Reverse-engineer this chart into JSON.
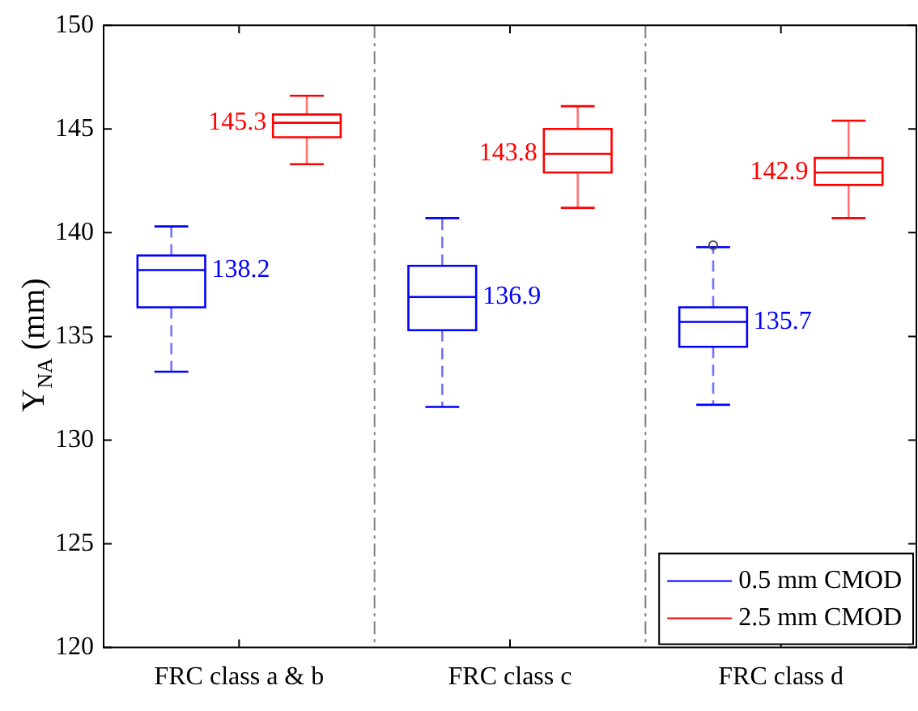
{
  "chart_data": {
    "type": "box",
    "ylabel": "Y$_{NA}$ (mm)",
    "categories": [
      "FRC class a & b",
      "FRC class c",
      "FRC class d"
    ],
    "series": [
      {
        "name": "0.5 mm CMOD",
        "color": "#0000ff",
        "line_style": "dashed",
        "value_labels": [
          "138.2",
          "136.9",
          "135.7"
        ],
        "boxes": [
          {
            "low": 133.3,
            "q1": 136.4,
            "median": 138.2,
            "q3": 138.9,
            "high": 140.3
          },
          {
            "low": 131.6,
            "q1": 135.3,
            "median": 136.9,
            "q3": 138.4,
            "high": 140.7
          },
          {
            "low": 131.7,
            "q1": 134.5,
            "median": 135.7,
            "q3": 136.4,
            "high": 139.3,
            "outliers": [
              139.4
            ]
          }
        ]
      },
      {
        "name": "2.5 mm CMOD",
        "color": "#ff0000",
        "line_style": "solid",
        "value_labels": [
          "145.3",
          "143.8",
          "142.9"
        ],
        "boxes": [
          {
            "low": 143.3,
            "q1": 144.6,
            "median": 145.3,
            "q3": 145.7,
            "high": 146.6
          },
          {
            "low": 141.2,
            "q1": 142.9,
            "median": 143.8,
            "q3": 145.0,
            "high": 146.1
          },
          {
            "low": 140.7,
            "q1": 142.3,
            "median": 142.9,
            "q3": 143.6,
            "high": 145.4
          }
        ]
      }
    ],
    "ylim": [
      120,
      150
    ],
    "yticks": [
      120,
      125,
      130,
      135,
      140,
      145,
      150
    ],
    "grid": false,
    "legend": "bottom right"
  }
}
